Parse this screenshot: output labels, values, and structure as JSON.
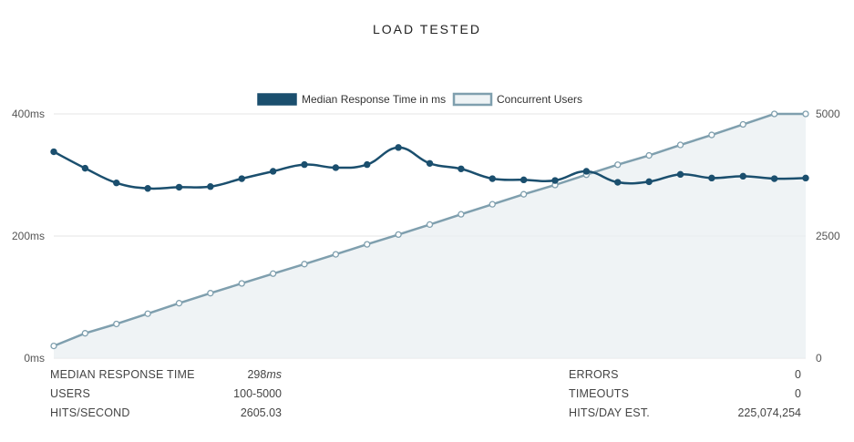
{
  "title": "LOAD TESTED",
  "chart_data": {
    "type": "line",
    "title": "",
    "x": [
      1,
      2,
      3,
      4,
      5,
      6,
      7,
      8,
      9,
      10,
      11,
      12,
      13,
      14,
      15,
      16,
      17,
      18,
      19,
      20,
      21,
      22,
      23,
      24,
      25
    ],
    "series": [
      {
        "name": "Median Response Time in ms",
        "axis": "left",
        "color": "#1b4f6e",
        "values": [
          338,
          311,
          287,
          278,
          280,
          281,
          294,
          306,
          317,
          312,
          317,
          345,
          319,
          310,
          294,
          292,
          291,
          306,
          288,
          289,
          301,
          295,
          298,
          294,
          295
        ]
      },
      {
        "name": "Concurrent Users",
        "axis": "right",
        "color": "#7f9fae",
        "values": [
          250,
          510,
          700,
          910,
          1125,
          1330,
          1530,
          1730,
          1925,
          2125,
          2330,
          2530,
          2735,
          2945,
          3150,
          3355,
          3545,
          3755,
          3960,
          4150,
          4365,
          4570,
          4785,
          5000,
          5000
        ]
      }
    ],
    "y_left": {
      "ylim": [
        0,
        400
      ],
      "ticks": [
        "0ms",
        "200ms",
        "400ms"
      ],
      "tick_values": [
        0,
        200,
        400
      ]
    },
    "y_right": {
      "ylim": [
        0,
        5000
      ],
      "ticks": [
        "0",
        "2500",
        "5000"
      ],
      "tick_values": [
        0,
        2500,
        5000
      ]
    },
    "legend": "top-center",
    "grid": true
  },
  "stats": {
    "left": [
      {
        "label": "MEDIAN RESPONSE TIME",
        "value": "298",
        "unit": "ms"
      },
      {
        "label": "USERS",
        "value": "100-5000",
        "unit": ""
      },
      {
        "label": "HITS/SECOND",
        "value": "2605.03",
        "unit": ""
      }
    ],
    "right": [
      {
        "label": "ERRORS",
        "value": "0",
        "unit": ""
      },
      {
        "label": "TIMEOUTS",
        "value": "0",
        "unit": ""
      },
      {
        "label": "HITS/DAY EST.",
        "value": "225,074,254",
        "unit": ""
      }
    ]
  }
}
